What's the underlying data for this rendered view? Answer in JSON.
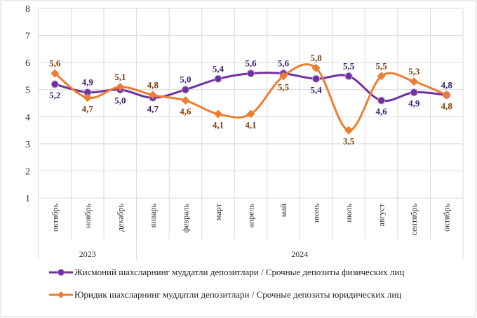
{
  "chart_data": {
    "type": "line",
    "categories": [
      "октябрь",
      "ноябрь",
      "декабрь",
      "январь",
      "февраль",
      "март",
      "апрель",
      "май",
      "июнь",
      "июль",
      "август",
      "сентябрь",
      "октябрь"
    ],
    "year_groups": [
      {
        "label": "2023",
        "count": 3
      },
      {
        "label": "2024",
        "count": 10
      }
    ],
    "ylim": [
      1,
      8
    ],
    "yticks": [
      1,
      2,
      3,
      4,
      5,
      6,
      7,
      8
    ],
    "grid": true,
    "legend_position": "bottom",
    "series": [
      {
        "name": "Жисмоний шахсларнинг  муддатли  депозитлари / Срочные депозиты физических лиц",
        "color": "#7030a0",
        "marker": "circle",
        "values": [
          5.2,
          4.9,
          5.0,
          4.7,
          5.0,
          5.4,
          5.6,
          5.6,
          5.4,
          5.5,
          4.6,
          4.9,
          4.8
        ],
        "labels": [
          "5,2",
          "4,9",
          "5,0",
          "4,7",
          "5,0",
          "5,4",
          "5,6",
          "5,6",
          "5,4",
          "5,5",
          "4,6",
          "4,9",
          "4,8"
        ]
      },
      {
        "name": "Юридик шахсларнинг  муддатли  депозитлари / Срочные депозиты юридических лиц",
        "color": "#ed7d31",
        "marker": "diamond",
        "values": [
          5.6,
          4.7,
          5.1,
          4.8,
          4.6,
          4.1,
          4.1,
          5.5,
          5.8,
          3.5,
          5.5,
          5.3,
          4.8
        ],
        "labels": [
          "5,6",
          "4,7",
          "5,1",
          "4,8",
          "4,6",
          "4,1",
          "4,1",
          "5,5",
          "5,8",
          "3,5",
          "5,5",
          "5,3",
          "4,8"
        ]
      }
    ]
  }
}
